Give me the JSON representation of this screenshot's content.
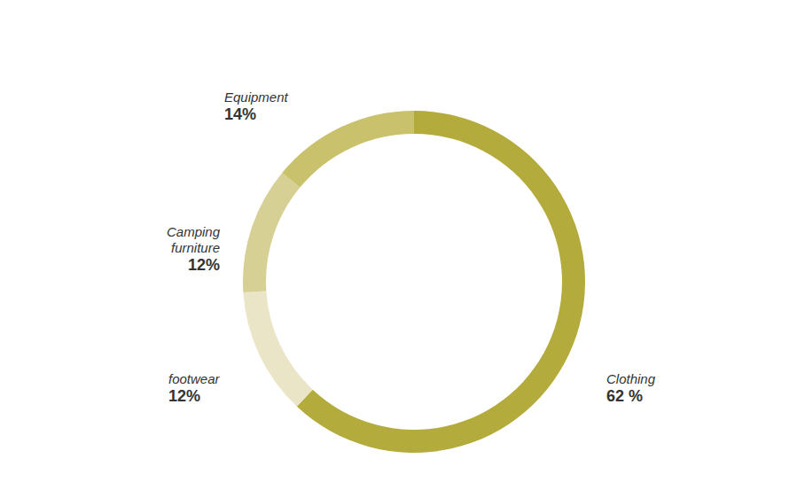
{
  "chart_data": {
    "type": "donut",
    "categories": [
      "Clothing",
      "footwear",
      "Camping furniture",
      "Equipment"
    ],
    "values": [
      62,
      12,
      12,
      14
    ],
    "value_labels": [
      "62 %",
      "12%",
      "12%",
      "14%"
    ],
    "colors": [
      "#b3ab3c",
      "#ebe5c8",
      "#d6d095",
      "#c9c16c"
    ],
    "data_labels": true
  }
}
